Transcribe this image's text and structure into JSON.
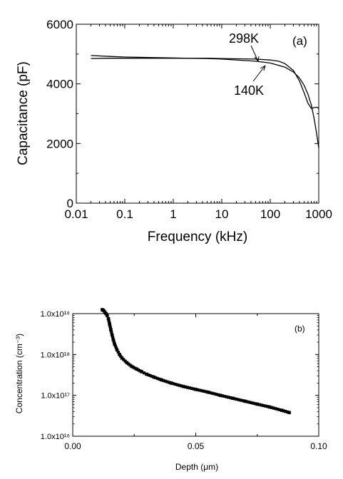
{
  "chart_data": [
    {
      "type": "line",
      "panel_label": "(a)",
      "xlabel": "Frequency (kHz)",
      "ylabel": "Capacitance (pF)",
      "xscale": "log",
      "xlim": [
        0.01,
        1000
      ],
      "ylim": [
        0,
        6000
      ],
      "x_tick_labels": [
        "0.01",
        "0.1",
        "1",
        "10",
        "100",
        "1000"
      ],
      "y_tick_labels": [
        "0",
        "2000",
        "4000",
        "6000"
      ],
      "annotations": [
        "298K",
        "140K"
      ],
      "series": [
        {
          "name": "298K",
          "x": [
            0.02,
            0.05,
            0.1,
            0.5,
            1,
            5,
            10,
            50,
            100,
            150,
            200,
            300,
            400,
            500,
            600,
            700,
            800,
            900,
            1000
          ],
          "y": [
            4850,
            4860,
            4860,
            4860,
            4860,
            4860,
            4850,
            4830,
            4800,
            4760,
            4680,
            4450,
            4100,
            3700,
            3350,
            3180,
            3200,
            3220,
            3180
          ]
        },
        {
          "name": "140K",
          "x": [
            0.02,
            0.05,
            0.1,
            0.5,
            1,
            5,
            10,
            50,
            100,
            200,
            300,
            400,
            500,
            600,
            700,
            800,
            900,
            1000
          ],
          "y": [
            4950,
            4920,
            4900,
            4880,
            4870,
            4850,
            4830,
            4760,
            4700,
            4560,
            4400,
            4200,
            3950,
            3650,
            3300,
            2850,
            2350,
            1850
          ]
        }
      ]
    },
    {
      "type": "scatter",
      "panel_label": "(b)",
      "xlabel": "Depth (μm)",
      "ylabel": "Concentration (cm⁻³)",
      "yscale": "log",
      "xlim": [
        0.0,
        0.1
      ],
      "ylim": [
        1e+16,
        1e+19
      ],
      "x_tick_labels": [
        "0.00",
        "0.05",
        "0.10"
      ],
      "y_tick_labels": [
        "1.0x10¹⁶",
        "1.0x10¹⁷",
        "1.0x10¹⁸",
        "1.0x10¹⁹"
      ],
      "series": [
        {
          "x": [
            0.012,
            0.0125,
            0.013,
            0.0135,
            0.014,
            0.0145,
            0.015,
            0.0155,
            0.016,
            0.0165,
            0.017,
            0.018,
            0.019,
            0.02,
            0.022,
            0.024,
            0.026,
            0.028,
            0.03,
            0.033,
            0.036,
            0.04,
            0.045,
            0.05,
            0.055,
            0.06,
            0.065,
            0.07,
            0.075,
            0.08,
            0.085,
            0.088
          ],
          "y": [
            1.25e+19,
            1.2e+19,
            1.1e+19,
            1e+19,
            9e+18,
            7.5e+18,
            5.5e+18,
            4e+18,
            3e+18,
            2.3e+18,
            1.8e+18,
            1.3e+18,
            1e+18,
            8.2e+17,
            6.3e+17,
            5.1e+17,
            4.4e+17,
            3.8e+17,
            3.3e+17,
            2.8e+17,
            2.4e+17,
            2e+17,
            1.65e+17,
            1.4e+17,
            1.2e+17,
            1e+17,
            8.5e+16,
            7.2e+16,
            6.1e+16,
            5.2e+16,
            4.3e+16,
            3.8e+16
          ]
        }
      ]
    }
  ]
}
